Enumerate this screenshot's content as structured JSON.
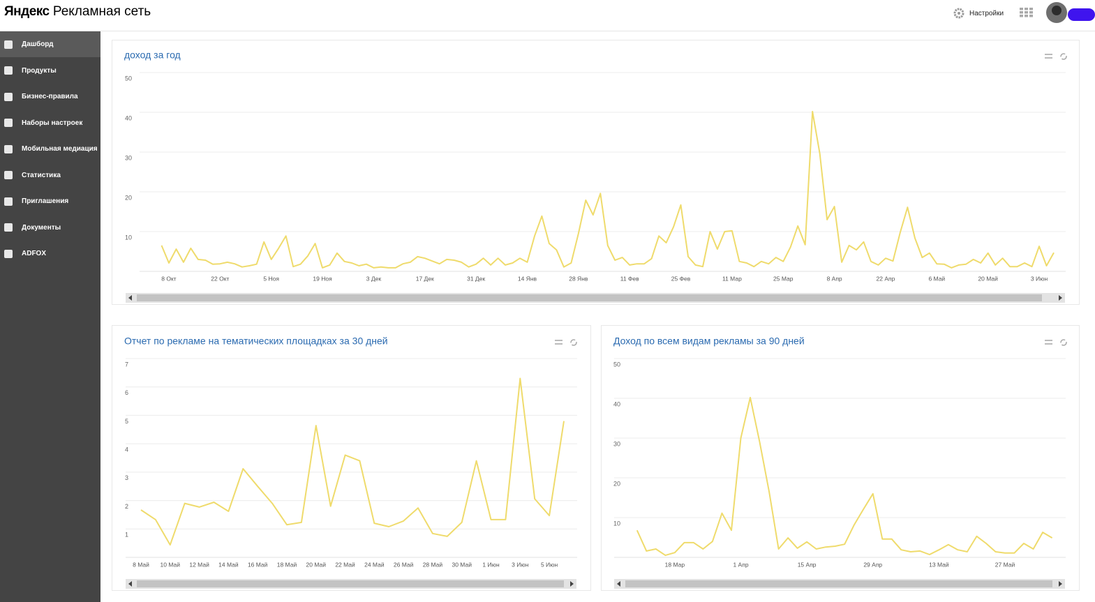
{
  "header": {
    "logo_brand": "Яндекс",
    "logo_product": "Рекламная сеть",
    "settings": "Настройки"
  },
  "sidebar": {
    "items": [
      "Дашборд",
      "Продукты",
      "Бизнес-правила",
      "Наборы настроек",
      "Мобильная медиация",
      "Статистика",
      "Приглашения",
      "Документы",
      "ADFOX"
    ]
  },
  "chart_data": [
    {
      "type": "line",
      "title": "доход за год",
      "categories": [
        null,
        "8 Окт",
        null,
        null,
        null,
        null,
        null,
        null,
        "22 Окт",
        null,
        null,
        null,
        null,
        null,
        null,
        "5 Ноя",
        null,
        null,
        null,
        null,
        null,
        null,
        "19 Ноя",
        null,
        null,
        null,
        null,
        null,
        null,
        "3 Дек",
        null,
        null,
        null,
        null,
        null,
        null,
        "17 Дек",
        null,
        null,
        null,
        null,
        null,
        null,
        "31 Дек",
        null,
        null,
        null,
        null,
        null,
        null,
        "14 Янв",
        null,
        null,
        null,
        null,
        null,
        null,
        "28 Янв",
        null,
        null,
        null,
        null,
        null,
        null,
        "11 Фев",
        null,
        null,
        null,
        null,
        null,
        null,
        "25 Фев",
        null,
        null,
        null,
        null,
        null,
        null,
        "11 Мар",
        null,
        null,
        null,
        null,
        null,
        null,
        "25 Мар",
        null,
        null,
        null,
        null,
        null,
        null,
        "8 Апр",
        null,
        null,
        null,
        null,
        null,
        null,
        "22 Апр",
        null,
        null,
        null,
        null,
        null,
        null,
        "6 Май",
        null,
        null,
        null,
        null,
        null,
        null,
        "20 Май",
        null,
        null,
        null,
        null,
        null,
        null,
        "3 Июн",
        null,
        null
      ],
      "values": [
        6.5,
        2.1,
        5.6,
        2.3,
        5.8,
        3.0,
        2.8,
        1.8,
        1.9,
        2.3,
        1.9,
        1.1,
        1.4,
        1.8,
        7.4,
        3.0,
        5.8,
        8.9,
        1.2,
        1.8,
        3.9,
        7.0,
        0.9,
        1.6,
        4.6,
        2.5,
        2.1,
        1.4,
        1.8,
        0.9,
        1.1,
        0.9,
        0.9,
        1.9,
        2.3,
        3.7,
        3.3,
        2.6,
        1.9,
        3.0,
        2.8,
        2.3,
        1.1,
        1.8,
        3.3,
        1.6,
        3.3,
        1.6,
        2.1,
        3.3,
        2.3,
        8.9,
        13.9,
        7.0,
        5.4,
        1.1,
        2.1,
        9.5,
        17.9,
        14.2,
        19.6,
        6.5,
        2.8,
        3.5,
        1.6,
        1.9,
        1.9,
        3.2,
        8.9,
        7.2,
        11.2,
        16.7,
        3.7,
        1.6,
        1.2,
        10.0,
        5.6,
        10.0,
        10.2,
        2.5,
        2.1,
        1.2,
        2.5,
        1.9,
        3.5,
        2.5,
        6.1,
        11.4,
        6.7,
        40.2,
        29.6,
        13.0,
        16.3,
        2.3,
        6.5,
        5.4,
        7.4,
        2.5,
        1.6,
        3.3,
        2.6,
        9.8,
        16.1,
        8.4,
        3.5,
        4.6,
        1.9,
        1.8,
        0.9,
        1.6,
        1.8,
        3.0,
        2.1,
        4.6,
        1.6,
        3.3,
        1.2,
        1.2,
        2.1,
        1.2,
        6.3,
        1.4,
        4.7
      ],
      "color": "#efdb6c",
      "ylim": [
        0,
        50
      ],
      "yticks": [
        10,
        20,
        30,
        40,
        50
      ],
      "grid": true
    },
    {
      "type": "line",
      "title": "Отчет по рекламе на тематических площадках за 30 дней",
      "categories": [
        "8 Май",
        null,
        "10 Май",
        null,
        "12 Май",
        null,
        "14 Май",
        null,
        "16 Май",
        null,
        "18 Май",
        null,
        "20 Май",
        null,
        "22 Май",
        null,
        "24 Май",
        null,
        "26 Май",
        null,
        "28 Май",
        null,
        "30 Май",
        null,
        "1 Июн",
        null,
        "3 Июн",
        null,
        "5 Июн",
        null
      ],
      "values": [
        1.67,
        1.33,
        0.44,
        1.9,
        1.77,
        1.94,
        1.62,
        3.12,
        2.5,
        1.9,
        1.15,
        1.23,
        4.64,
        1.8,
        3.6,
        3.4,
        1.2,
        1.08,
        1.28,
        1.74,
        0.84,
        0.74,
        1.23,
        3.4,
        1.33,
        1.33,
        6.3,
        2.06,
        1.47,
        4.8
      ],
      "color": "#efdb6c",
      "ylim": [
        0,
        7
      ],
      "yticks": [
        1,
        2,
        3,
        4,
        5,
        6,
        7
      ],
      "grid": true
    },
    {
      "type": "line",
      "title": "Доход по всем видам рекламы за 90 дней",
      "categories": [
        null,
        null,
        null,
        null,
        "18 Мар",
        null,
        null,
        null,
        null,
        null,
        null,
        "1 Апр",
        null,
        null,
        null,
        null,
        null,
        null,
        "15 Апр",
        null,
        null,
        null,
        null,
        null,
        null,
        "29 Апр",
        null,
        null,
        null,
        null,
        null,
        null,
        "13 Май",
        null,
        null,
        null,
        null,
        null,
        null,
        "27 Май",
        null,
        null,
        null,
        null,
        null
      ],
      "values": [
        6.8,
        1.6,
        2.1,
        0.5,
        1.2,
        3.7,
        3.7,
        2.1,
        4.0,
        11.1,
        6.8,
        30.0,
        40.2,
        29.0,
        16.5,
        2.1,
        4.9,
        2.3,
        3.9,
        2.1,
        2.6,
        2.8,
        3.3,
        8.1,
        12.1,
        16.0,
        4.6,
        4.6,
        1.9,
        1.4,
        1.6,
        0.7,
        1.9,
        3.2,
        1.9,
        1.4,
        5.3,
        3.5,
        1.4,
        1.1,
        1.1,
        3.5,
        2.1,
        6.3,
        4.9
      ],
      "color": "#efdb6c",
      "ylim": [
        0,
        50
      ],
      "yticks": [
        10,
        20,
        30,
        40,
        50
      ],
      "grid": true
    }
  ]
}
